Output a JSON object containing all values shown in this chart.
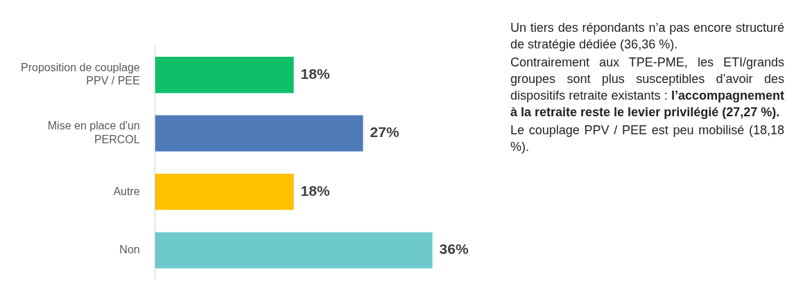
{
  "chart_data": {
    "type": "bar",
    "orientation": "horizontal",
    "categories": [
      "Proposition de couplage PPV / PEE",
      "Mise en place d'un PERCOL",
      "Autre",
      "Non"
    ],
    "values": [
      18,
      27,
      18,
      36
    ],
    "colors": [
      "#0fc06b",
      "#4e7bb8",
      "#ffc000",
      "#6dc9cc"
    ],
    "value_labels": [
      "18%",
      "27%",
      "18%",
      "36%"
    ],
    "annotations": [
      "Un tiers des répondants n’a pas encore structuré de stratégie dédiée (36,36 %).",
      "Contrairement aux TPE-PME, les ETI/grands groupes sont plus susceptibles d’avoir des dispositifs retraite existants :",
      "l’accompagnement à la retraite reste le levier privilégié (27,27 %).",
      "Le couplage PPV / PEE est peu mobilisé (18,18 %)."
    ]
  }
}
